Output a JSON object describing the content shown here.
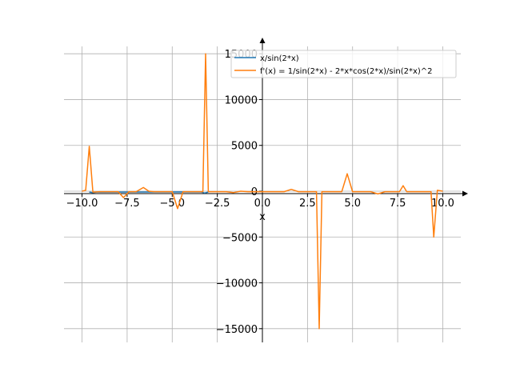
{
  "chart_data": {
    "type": "line",
    "title": "",
    "xlabel": "x",
    "ylabel": "",
    "xlim": [
      -11.0,
      11.0
    ],
    "ylim": [
      -16500,
      16500
    ],
    "grid": true,
    "legend_position": "top-right",
    "x_ticks": [
      -10.0,
      -7.5,
      -5.0,
      -2.5,
      0.0,
      2.5,
      5.0,
      7.5,
      10.0
    ],
    "x_tick_labels": [
      "−10.0",
      "−7.5",
      "−5.0",
      "−2.5",
      "0.0",
      "2.5",
      "5.0",
      "7.5",
      "10.0"
    ],
    "y_ticks": [
      -15000,
      -10000,
      -5000,
      0,
      5000,
      10000,
      15000
    ],
    "y_tick_labels": [
      "−15000",
      "−10000",
      "−5000",
      "0",
      "5000",
      "10000",
      "15000"
    ],
    "series": [
      {
        "name": "x/sin(2*x)",
        "color": "#1f77b4",
        "x": [
          -9.6,
          -9.4,
          -9.2,
          -3.4,
          -3.2,
          -3.0
        ],
        "y": [
          -100,
          -150,
          -100,
          -80,
          -200,
          -90
        ]
      },
      {
        "name": "f'(x) = 1/sin(2*x) - 2*x*cos(2*x)/sin(2*x)^2",
        "color": "#ff7f0e",
        "x": [
          -10.0,
          -9.8,
          -9.6,
          -9.4,
          -9.0,
          -8.5,
          -8.0,
          -7.7,
          -7.4,
          -7.0,
          -6.6,
          -6.3,
          -6.0,
          -5.5,
          -5.0,
          -4.7,
          -4.4,
          -4.0,
          -3.6,
          -3.3,
          -3.15,
          -3.0,
          -2.6,
          -2.0,
          -1.6,
          -1.2,
          -0.8,
          -0.3,
          0.2,
          0.7,
          1.2,
          1.6,
          2.0,
          2.6,
          3.0,
          3.15,
          3.3,
          3.6,
          4.0,
          4.4,
          4.7,
          5.0,
          5.5,
          6.0,
          6.4,
          6.8,
          7.2,
          7.6,
          7.8,
          8.0,
          8.5,
          9.0,
          9.35,
          9.5,
          9.7,
          10.0
        ],
        "y": [
          0,
          100,
          4900,
          -100,
          -50,
          -50,
          -50,
          -700,
          -50,
          -50,
          400,
          0,
          -50,
          -50,
          -50,
          -1900,
          -50,
          -50,
          -50,
          -50,
          15000,
          -50,
          -50,
          -50,
          -150,
          0,
          -50,
          -50,
          -50,
          -50,
          -50,
          200,
          -50,
          -50,
          -50,
          -15000,
          -50,
          -50,
          -50,
          -50,
          1900,
          -50,
          -50,
          -50,
          -300,
          -50,
          -50,
          -50,
          600,
          -50,
          -50,
          -50,
          -50,
          -5000,
          100,
          0
        ]
      }
    ]
  }
}
